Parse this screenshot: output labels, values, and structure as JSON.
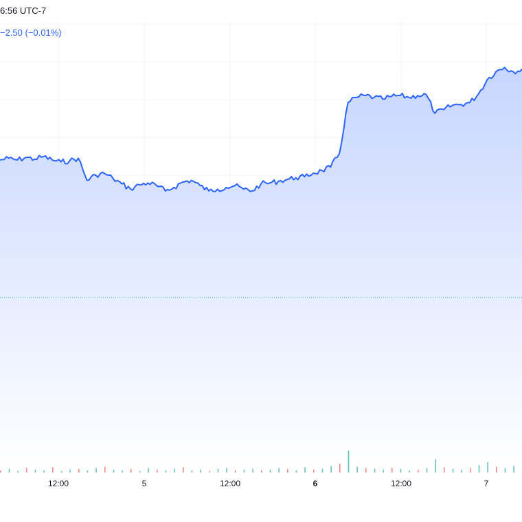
{
  "header": {
    "time_text": "6:56 UTC-7",
    "change_text": "−2.50 (−0.01%)"
  },
  "colors": {
    "line": "#2962ff",
    "fill_top": "#c7d6ff",
    "fill_bottom": "#ffffff",
    "grid": "#f0f3fa",
    "ref_line": "#26a69a",
    "vol_up": "#26a69a",
    "vol_down": "#ef5350"
  },
  "chart_data": {
    "type": "area",
    "title": "",
    "xlabel": "",
    "ylabel": "",
    "grid": true,
    "x_ticks": [
      {
        "label": "12:00",
        "major": false
      },
      {
        "label": "5",
        "major": false
      },
      {
        "label": "12:00",
        "major": false
      },
      {
        "label": "6",
        "major": true
      },
      {
        "label": "12:00",
        "major": false
      },
      {
        "label": "7",
        "major": false
      }
    ],
    "series": [
      {
        "values": [
          205,
          207,
          205,
          208,
          206,
          209,
          205,
          203,
          204,
          207,
          182,
          188,
          190,
          184,
          178,
          172,
          177,
          179,
          176,
          170,
          174,
          180,
          182,
          176,
          170,
          172,
          174,
          176,
          172,
          170,
          178,
          179,
          181,
          183,
          185,
          186,
          190,
          193,
          197,
          212,
          270,
          276,
          278,
          276,
          274,
          277,
          278,
          276,
          278,
          279,
          258,
          262,
          267,
          268,
          270,
          280,
          296,
          305,
          310,
          305,
          308
        ],
        "x_range": [
          0,
          760
        ],
        "y_range": [
          0,
          320
        ]
      }
    ],
    "volume": [
      3,
      5,
      2,
      6,
      4,
      3,
      7,
      2,
      4,
      5,
      3,
      6,
      8,
      4,
      3,
      5,
      2,
      6,
      4,
      3,
      5,
      7,
      3,
      4,
      2,
      5,
      6,
      3,
      4,
      5,
      3,
      4,
      6,
      5,
      3,
      7,
      4,
      5,
      9,
      12,
      30,
      8,
      6,
      5,
      4,
      6,
      5,
      3,
      4,
      6,
      18,
      7,
      5,
      4,
      6,
      10,
      14,
      8,
      6,
      9,
      5
    ]
  }
}
